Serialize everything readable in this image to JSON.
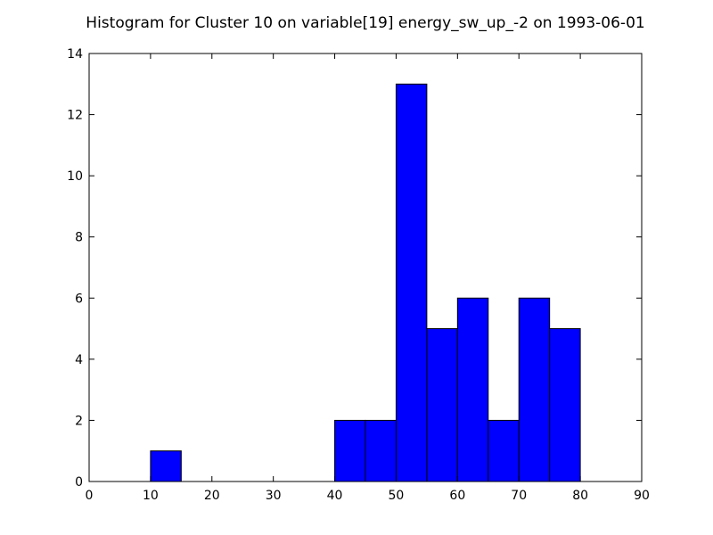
{
  "chart_data": {
    "type": "bar",
    "title": "Histogram for Cluster 10 on variable[19] energy_sw_up_-2 on 1993-06-01",
    "bin_width": 5,
    "bins": [
      {
        "start": 0,
        "end": 5,
        "count": 0
      },
      {
        "start": 10,
        "end": 15,
        "count": 1
      },
      {
        "start": 40,
        "end": 45,
        "count": 2
      },
      {
        "start": 45,
        "end": 50,
        "count": 2
      },
      {
        "start": 50,
        "end": 55,
        "count": 13
      },
      {
        "start": 55,
        "end": 60,
        "count": 5
      },
      {
        "start": 60,
        "end": 65,
        "count": 6
      },
      {
        "start": 65,
        "end": 70,
        "count": 2
      },
      {
        "start": 70,
        "end": 75,
        "count": 6
      },
      {
        "start": 75,
        "end": 80,
        "count": 5
      }
    ],
    "xlim": [
      0,
      90
    ],
    "ylim": [
      0,
      14
    ],
    "xticks": [
      "0",
      "10",
      "20",
      "30",
      "40",
      "50",
      "60",
      "70",
      "80",
      "90"
    ],
    "yticks": [
      "0",
      "2",
      "4",
      "6",
      "8",
      "10",
      "12",
      "14"
    ],
    "bar_color": "#0000ff",
    "grid": false,
    "legend": "none"
  }
}
